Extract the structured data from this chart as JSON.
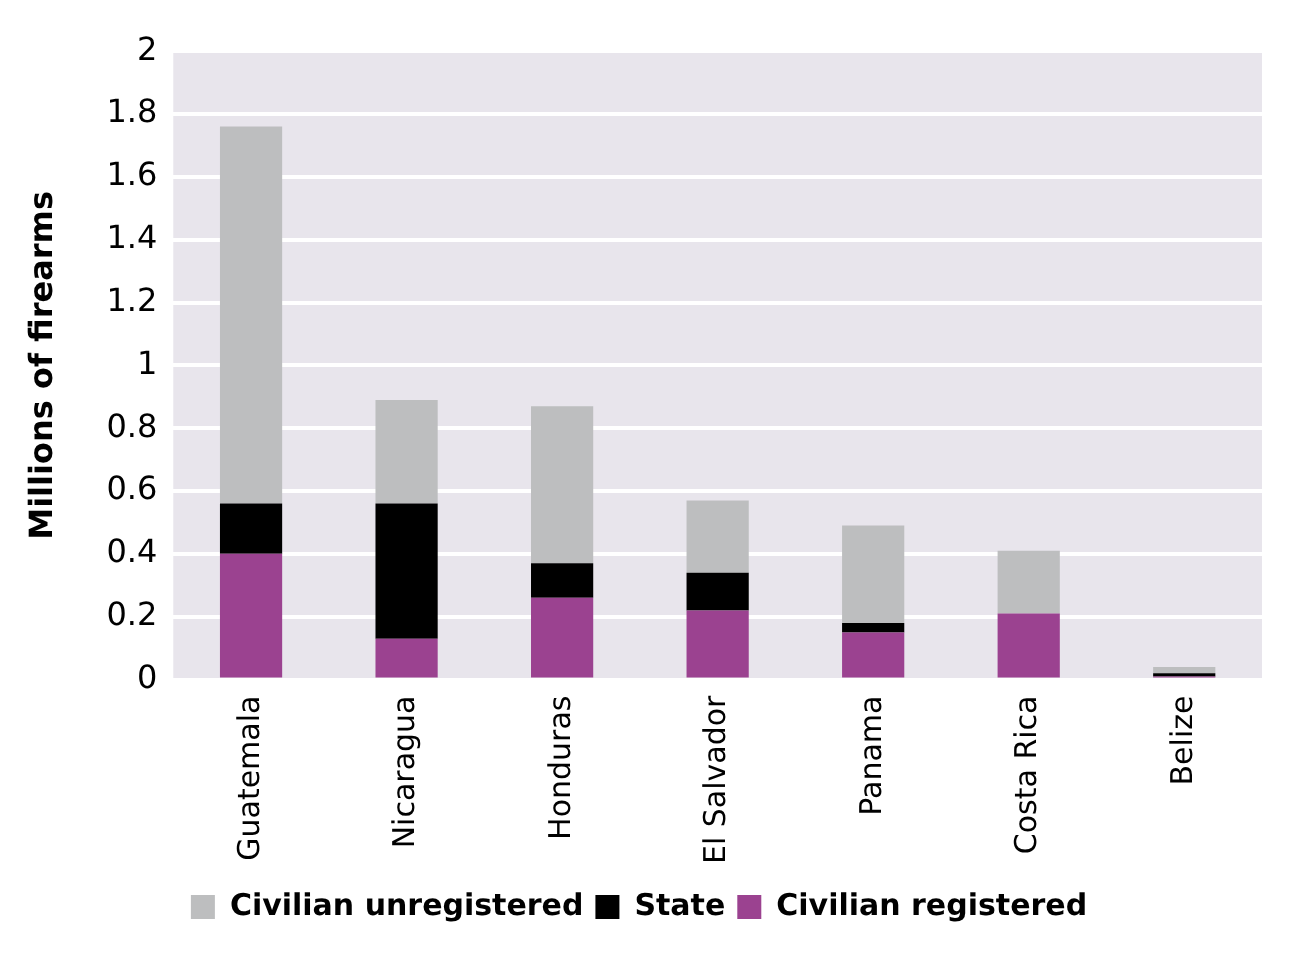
{
  "chart_data": {
    "type": "bar",
    "ylabel": "Millions of firearms",
    "categories": [
      "Guatemala",
      "Nicaragua",
      "Honduras",
      "El Salvador",
      "Panama",
      "Costa Rica",
      "Belize"
    ],
    "stacked": true,
    "series": [
      {
        "name": "Civilian registered",
        "color": "#9b4290",
        "values": [
          0.4,
          0.13,
          0.26,
          0.22,
          0.15,
          0.21,
          0.01
        ]
      },
      {
        "name": "State",
        "color": "#000000",
        "values": [
          0.16,
          0.43,
          0.11,
          0.12,
          0.03,
          0,
          0.01
        ]
      },
      {
        "name": "Civilian unregistered",
        "color": "#bdbebf",
        "values": [
          1.2,
          0.33,
          0.5,
          0.23,
          0.31,
          0.2,
          0.02
        ]
      }
    ],
    "ylim": [
      0,
      2
    ],
    "yticks": [
      0,
      0.2,
      0.4,
      0.6,
      0.8,
      1,
      1.2,
      1.4,
      1.6,
      1.8,
      2
    ],
    "grid": "y",
    "legend": "bottom"
  }
}
